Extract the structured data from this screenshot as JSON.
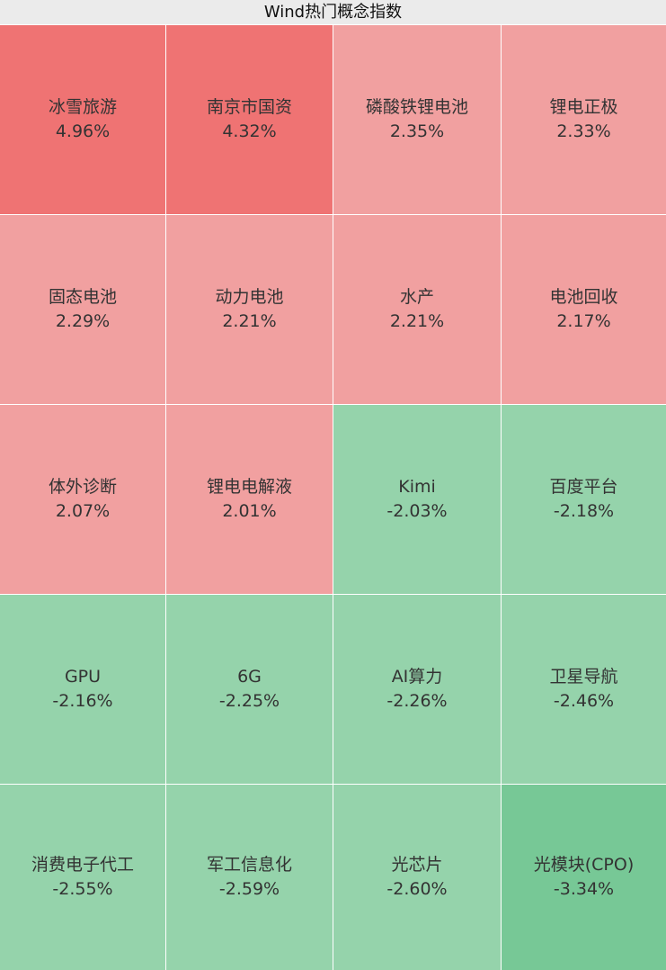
{
  "chart_data": {
    "type": "heatmap",
    "title": "Wind热门概念指数",
    "colors": {
      "strong_up": "#ef7373",
      "up": "#f1a0a0",
      "down": "#95d3ab",
      "strong_down": "#77c896"
    },
    "cells": [
      {
        "name": "冰雪旅游",
        "value": "4.96%",
        "change": 4.96
      },
      {
        "name": "南京市国资",
        "value": "4.32%",
        "change": 4.32
      },
      {
        "name": "磷酸铁锂电池",
        "value": "2.35%",
        "change": 2.35
      },
      {
        "name": "锂电正极",
        "value": "2.33%",
        "change": 2.33
      },
      {
        "name": "固态电池",
        "value": "2.29%",
        "change": 2.29
      },
      {
        "name": "动力电池",
        "value": "2.21%",
        "change": 2.21
      },
      {
        "name": "水产",
        "value": "2.21%",
        "change": 2.21
      },
      {
        "name": "电池回收",
        "value": "2.17%",
        "change": 2.17
      },
      {
        "name": "体外诊断",
        "value": "2.07%",
        "change": 2.07
      },
      {
        "name": "锂电电解液",
        "value": "2.01%",
        "change": 2.01
      },
      {
        "name": "Kimi",
        "value": "-2.03%",
        "change": -2.03
      },
      {
        "name": "百度平台",
        "value": "-2.18%",
        "change": -2.18
      },
      {
        "name": "GPU",
        "value": "-2.16%",
        "change": -2.16
      },
      {
        "name": "6G",
        "value": "-2.25%",
        "change": -2.25
      },
      {
        "name": "AI算力",
        "value": "-2.26%",
        "change": -2.26
      },
      {
        "name": "卫星导航",
        "value": "-2.46%",
        "change": -2.46
      },
      {
        "name": "消费电子代工",
        "value": "-2.55%",
        "change": -2.55
      },
      {
        "name": "军工信息化",
        "value": "-2.59%",
        "change": -2.59
      },
      {
        "name": "光芯片",
        "value": "-2.60%",
        "change": -2.6
      },
      {
        "name": "光模块(CPO)",
        "value": "-3.34%",
        "change": -3.34
      }
    ]
  }
}
